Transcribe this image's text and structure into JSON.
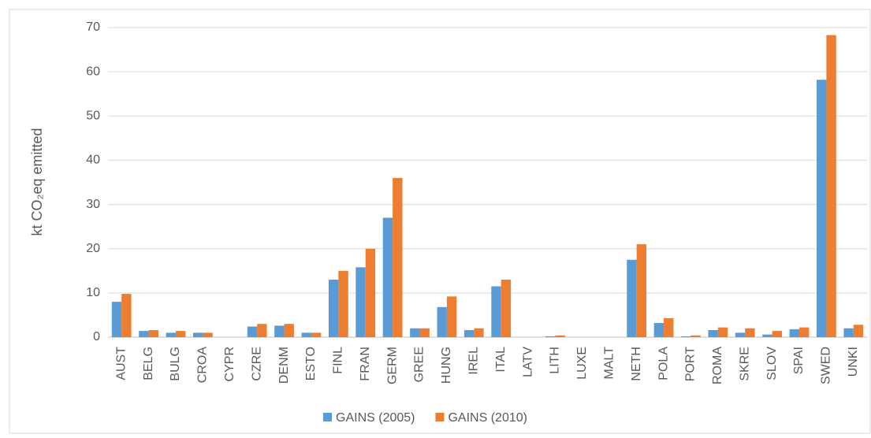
{
  "chart_data": {
    "type": "bar",
    "y_label": "kt CO₂eq emitted",
    "categories": [
      "AUST",
      "BELG",
      "BULG",
      "CROA",
      "CYPR",
      "CZRE",
      "DENM",
      "ESTO",
      "FINL",
      "FRAN",
      "GERM",
      "GREE",
      "HUNG",
      "IREL",
      "ITAL",
      "LATV",
      "LITH",
      "LUXE",
      "MALT",
      "NETH",
      "POLA",
      "PORT",
      "ROMA",
      "SKRE",
      "SLOV",
      "SPAI",
      "SWED",
      "UNKI"
    ],
    "series": [
      {
        "name": "GAINS (2005)",
        "color": "#5b9bd5",
        "values": [
          8,
          1.4,
          1.0,
          1.0,
          0,
          2.4,
          2.6,
          1.0,
          13,
          15.8,
          27,
          2,
          6.8,
          1.6,
          11.5,
          0,
          0.2,
          0,
          0,
          17.5,
          3.2,
          0.2,
          1.6,
          1.0,
          0.6,
          1.8,
          58.2,
          2
        ]
      },
      {
        "name": "GAINS (2010)",
        "color": "#ed7d31",
        "values": [
          9.8,
          1.6,
          1.4,
          1.0,
          0,
          3.0,
          3.0,
          1.0,
          15,
          20,
          36,
          2,
          9.2,
          2,
          13,
          0,
          0.4,
          0,
          0,
          21,
          4.3,
          0.4,
          2.2,
          2.0,
          1.4,
          2.2,
          68.3,
          2.8
        ]
      }
    ],
    "ylim": [
      0,
      70
    ],
    "yticks": [
      0,
      10,
      20,
      30,
      40,
      50,
      60,
      70
    ],
    "grid": true,
    "legend": "bottom"
  }
}
